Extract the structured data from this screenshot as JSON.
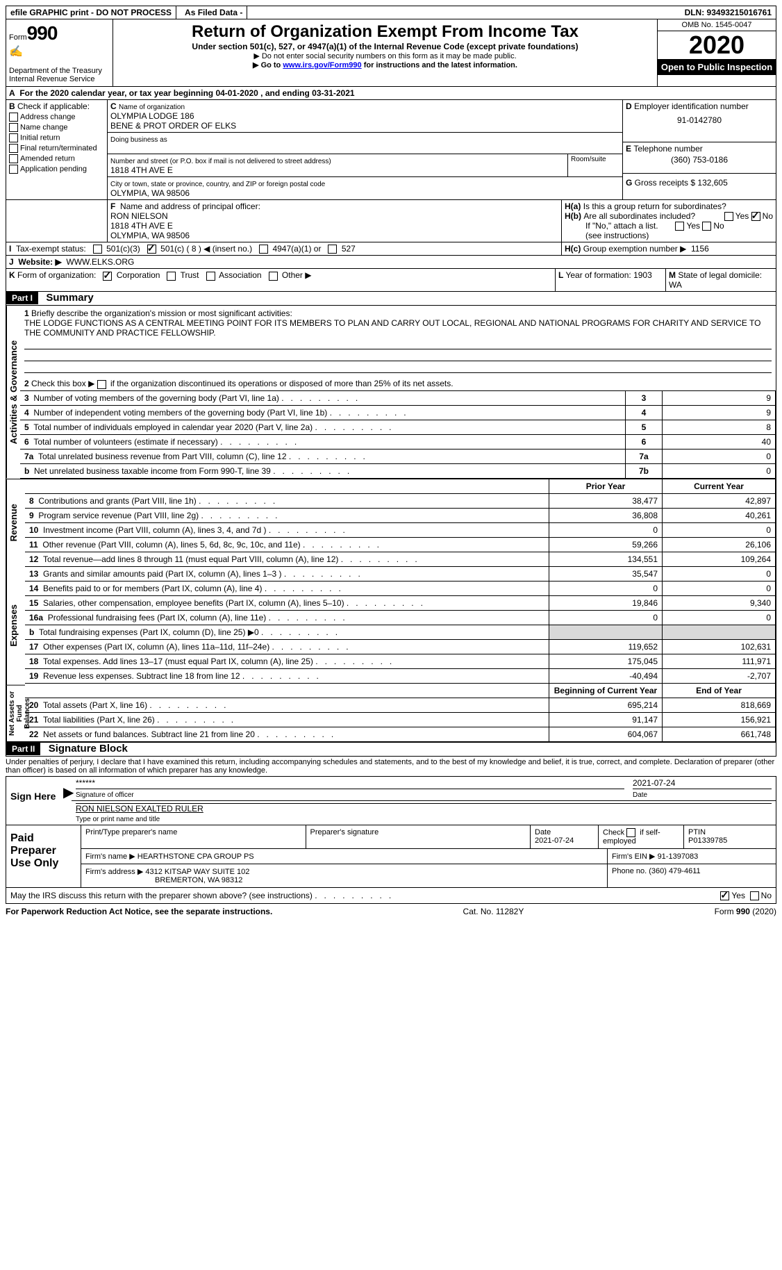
{
  "top": {
    "efile": "efile GRAPHIC print - DO NOT PROCESS",
    "asfiled": "As Filed Data -",
    "dln": "DLN: 93493215016761"
  },
  "header": {
    "form_prefix": "Form",
    "form_no": "990",
    "dept": "Department of the Treasury",
    "irs": "Internal Revenue Service",
    "title": "Return of Organization Exempt From Income Tax",
    "sub": "Under section 501(c), 527, or 4947(a)(1) of the Internal Revenue Code (except private foundations)",
    "note1": "▶ Do not enter social security numbers on this form as it may be made public.",
    "note2_pre": "▶ Go to ",
    "note2_link": "www.irs.gov/Form990",
    "note2_post": " for instructions and the latest information.",
    "omb": "OMB No. 1545-0047",
    "year": "2020",
    "open": "Open to Public Inspection"
  },
  "A": {
    "text": "For the 2020 calendar year, or tax year beginning 04-01-2020  , and ending 03-31-2021"
  },
  "B": {
    "label": "Check if applicable:",
    "items": [
      "Address change",
      "Name change",
      "Initial return",
      "Final return/terminated",
      "Amended return",
      "Application pending"
    ]
  },
  "C": {
    "label": "Name of organization",
    "name1": "OLYMPIA LODGE 186",
    "name2": "BENE & PROT ORDER OF ELKS",
    "dba_label": "Doing business as",
    "addr_label": "Number and street (or P.O. box if mail is not delivered to street address)",
    "room_label": "Room/suite",
    "addr": "1818 4TH AVE E",
    "city_label": "City or town, state or province, country, and ZIP or foreign postal code",
    "city": "OLYMPIA, WA  98506"
  },
  "D": {
    "label": "Employer identification number",
    "val": "91-0142780"
  },
  "E": {
    "label": "Telephone number",
    "val": "(360) 753-0186"
  },
  "G": {
    "label": "Gross receipts $",
    "val": "132,605"
  },
  "F": {
    "label": "Name and address of principal officer:",
    "name": "RON NIELSON",
    "addr": "1818 4TH AVE E",
    "city": "OLYMPIA, WA  98506"
  },
  "H": {
    "a": "Is this a group return for subordinates?",
    "b": "Are all subordinates included?",
    "note": "If \"No,\" attach a list. (see instructions)",
    "c_label": "Group exemption number ▶",
    "c_val": "1156",
    "yes": "Yes",
    "no": "No"
  },
  "I": {
    "label": "Tax-exempt status:",
    "c3": "501(c)(3)",
    "c": "501(c) ( 8 ) ◀ (insert no.)",
    "a4947": "4947(a)(1) or",
    "c527": "527"
  },
  "J": {
    "label": "Website: ▶",
    "val": "WWW.ELKS.ORG"
  },
  "K": {
    "label": "Form of organization:",
    "corp": "Corporation",
    "trust": "Trust",
    "assoc": "Association",
    "other": "Other ▶"
  },
  "L": {
    "label": "Year of formation:",
    "val": "1903"
  },
  "M": {
    "label": "State of legal domicile:",
    "val": "WA"
  },
  "part1": {
    "tab": "Part I",
    "title": "Summary"
  },
  "summary": {
    "l1_label": "Briefly describe the organization's mission or most significant activities:",
    "l1_text": "THE LODGE FUNCTIONS AS A CENTRAL MEETING POINT FOR ITS MEMBERS TO PLAN AND CARRY OUT LOCAL, REGIONAL AND NATIONAL PROGRAMS FOR CHARITY AND SERVICE TO THE COMMUNITY AND PRACTICE FELLOWSHIP.",
    "l2": "Check this box ▶      if the organization discontinued its operations or disposed of more than 25% of its net assets.",
    "lines_a": [
      {
        "n": "3",
        "t": "Number of voting members of the governing body (Part VI, line 1a)",
        "box": "3",
        "v": "9"
      },
      {
        "n": "4",
        "t": "Number of independent voting members of the governing body (Part VI, line 1b)",
        "box": "4",
        "v": "9"
      },
      {
        "n": "5",
        "t": "Total number of individuals employed in calendar year 2020 (Part V, line 2a)",
        "box": "5",
        "v": "8"
      },
      {
        "n": "6",
        "t": "Total number of volunteers (estimate if necessary)",
        "box": "6",
        "v": "40"
      },
      {
        "n": "7a",
        "t": "Total unrelated business revenue from Part VIII, column (C), line 12",
        "box": "7a",
        "v": "0"
      },
      {
        "n": "b",
        "t": "Net unrelated business taxable income from Form 990-T, line 39",
        "box": "7b",
        "v": "0"
      }
    ],
    "col_prior": "Prior Year",
    "col_current": "Current Year",
    "revenue": [
      {
        "n": "8",
        "t": "Contributions and grants (Part VIII, line 1h)",
        "p": "38,477",
        "c": "42,897"
      },
      {
        "n": "9",
        "t": "Program service revenue (Part VIII, line 2g)",
        "p": "36,808",
        "c": "40,261"
      },
      {
        "n": "10",
        "t": "Investment income (Part VIII, column (A), lines 3, 4, and 7d )",
        "p": "0",
        "c": "0"
      },
      {
        "n": "11",
        "t": "Other revenue (Part VIII, column (A), lines 5, 6d, 8c, 9c, 10c, and 11e)",
        "p": "59,266",
        "c": "26,106"
      },
      {
        "n": "12",
        "t": "Total revenue—add lines 8 through 11 (must equal Part VIII, column (A), line 12)",
        "p": "134,551",
        "c": "109,264"
      }
    ],
    "expenses": [
      {
        "n": "13",
        "t": "Grants and similar amounts paid (Part IX, column (A), lines 1–3 )",
        "p": "35,547",
        "c": "0"
      },
      {
        "n": "14",
        "t": "Benefits paid to or for members (Part IX, column (A), line 4)",
        "p": "0",
        "c": "0"
      },
      {
        "n": "15",
        "t": "Salaries, other compensation, employee benefits (Part IX, column (A), lines 5–10)",
        "p": "19,846",
        "c": "9,340"
      },
      {
        "n": "16a",
        "t": "Professional fundraising fees (Part IX, column (A), line 11e)",
        "p": "0",
        "c": "0"
      },
      {
        "n": "b",
        "t": "Total fundraising expenses (Part IX, column (D), line 25) ▶0",
        "p": "",
        "c": ""
      },
      {
        "n": "17",
        "t": "Other expenses (Part IX, column (A), lines 11a–11d, 11f–24e)",
        "p": "119,652",
        "c": "102,631"
      },
      {
        "n": "18",
        "t": "Total expenses. Add lines 13–17 (must equal Part IX, column (A), line 25)",
        "p": "175,045",
        "c": "111,971"
      },
      {
        "n": "19",
        "t": "Revenue less expenses. Subtract line 18 from line 12",
        "p": "-40,494",
        "c": "-2,707"
      }
    ],
    "col_begin": "Beginning of Current Year",
    "col_end": "End of Year",
    "netassets": [
      {
        "n": "20",
        "t": "Total assets (Part X, line 16)",
        "p": "695,214",
        "c": "818,669"
      },
      {
        "n": "21",
        "t": "Total liabilities (Part X, line 26)",
        "p": "91,147",
        "c": "156,921"
      },
      {
        "n": "22",
        "t": "Net assets or fund balances. Subtract line 21 from line 20",
        "p": "604,067",
        "c": "661,748"
      }
    ]
  },
  "part2": {
    "tab": "Part II",
    "title": "Signature Block"
  },
  "sig": {
    "perjury": "Under penalties of perjury, I declare that I have examined this return, including accompanying schedules and statements, and to the best of my knowledge and belief, it is true, correct, and complete. Declaration of preparer (other than officer) is based on all information of which preparer has any knowledge.",
    "sign_here": "Sign Here",
    "stars": "******",
    "sig_label": "Signature of officer",
    "date": "2021-07-24",
    "date_label": "Date",
    "name": "RON NIELSON EXALTED RULER",
    "name_label": "Type or print name and title",
    "paid": "Paid Preparer Use Only",
    "prep_name_label": "Print/Type preparer's name",
    "prep_sig_label": "Preparer's signature",
    "prep_date_label": "Date",
    "prep_date": "2021-07-24",
    "check_self": "Check       if self-employed",
    "ptin_label": "PTIN",
    "ptin": "P01339785",
    "firm_name_label": "Firm's name    ▶",
    "firm_name": "HEARTHSTONE CPA GROUP PS",
    "firm_ein_label": "Firm's EIN ▶",
    "firm_ein": "91-1397083",
    "firm_addr_label": "Firm's address ▶",
    "firm_addr1": "4312 KITSAP WAY SUITE 102",
    "firm_addr2": "BREMERTON, WA  98312",
    "phone_label": "Phone no.",
    "phone": "(360) 479-4611",
    "discuss": "May the IRS discuss this return with the preparer shown above? (see instructions)"
  },
  "footer": {
    "paperwork": "For Paperwork Reduction Act Notice, see the separate instructions.",
    "cat": "Cat. No. 11282Y",
    "form": "Form 990 (2020)"
  }
}
